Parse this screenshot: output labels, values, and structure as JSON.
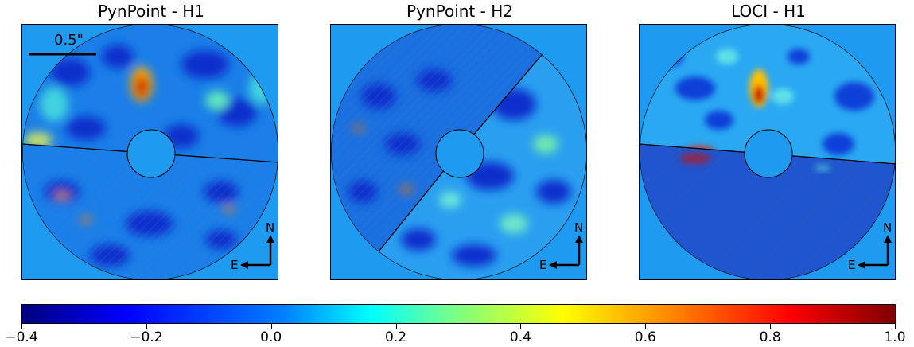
{
  "chart_data": {
    "type": "heatmap",
    "panels": [
      {
        "title": "PynPoint - H1",
        "scale_bar_label": "0.5\"",
        "compass": {
          "north": "N",
          "east": "E"
        }
      },
      {
        "title": "PynPoint - H2",
        "compass": {
          "north": "N",
          "east": "E"
        }
      },
      {
        "title": "LOCI - H1",
        "compass": {
          "north": "N",
          "east": "E"
        }
      }
    ],
    "colorbar": {
      "colormap": "jet",
      "range": [
        -0.4,
        1.0
      ],
      "ticks": [
        "−0.4",
        "−0.2",
        "0.0",
        "0.2",
        "0.4",
        "0.6",
        "0.8",
        "1.0"
      ],
      "tick_values": [
        -0.4,
        -0.2,
        0.0,
        0.2,
        0.4,
        0.6,
        0.8,
        1.0
      ]
    }
  },
  "colors": {
    "background": "#1E9BF0",
    "masked_hatch": "#4a8fd8",
    "hot_spot": "#c00000"
  }
}
